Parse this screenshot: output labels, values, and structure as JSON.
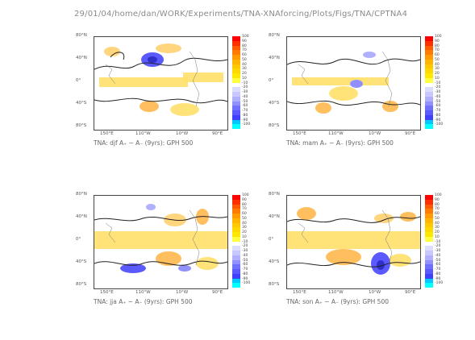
{
  "header": {
    "path": "29/01/04/home/dan/WORK/Experiments/TNA-XNAforcing/Plots/Figs/TNA/CPTNA4"
  },
  "panels": [
    {
      "title": "TNA: djf A₊ − A₋ (9yrs): GPH 500"
    },
    {
      "title": "TNA: mam A₊ − A₋ (9yrs): GPH 500"
    },
    {
      "title": "TNA: jja A₊ − A₋ (9yrs): GPH 500"
    },
    {
      "title": "TNA: son A₊ − A₋ (9yrs): GPH 500"
    }
  ],
  "axes": {
    "lat_labels": [
      "80°N",
      "40°N",
      "0°",
      "40°S",
      "80°S"
    ],
    "lon_labels": [
      "150°E",
      "110°W",
      "10°W",
      "90°E"
    ]
  },
  "colorbar": {
    "labels": [
      "100",
      "90",
      "80",
      "70",
      "60",
      "50",
      "40",
      "30",
      "20",
      "10",
      "-10",
      "-20",
      "-30",
      "-40",
      "-50",
      "-60",
      "-70",
      "-80",
      "-90",
      "-100"
    ],
    "colors": [
      "#ff0000",
      "#ff3000",
      "#ff5a00",
      "#ff7a00",
      "#ff9a00",
      "#ffb400",
      "#ffc800",
      "#ffd800",
      "#ffe800",
      "#ffff40",
      "#ffffff",
      "#dcdcff",
      "#c8c8ff",
      "#b0b0ff",
      "#9090ff",
      "#7070ff",
      "#5a5aff",
      "#4040ff",
      "#00c8ff",
      "#00ffff"
    ]
  }
}
